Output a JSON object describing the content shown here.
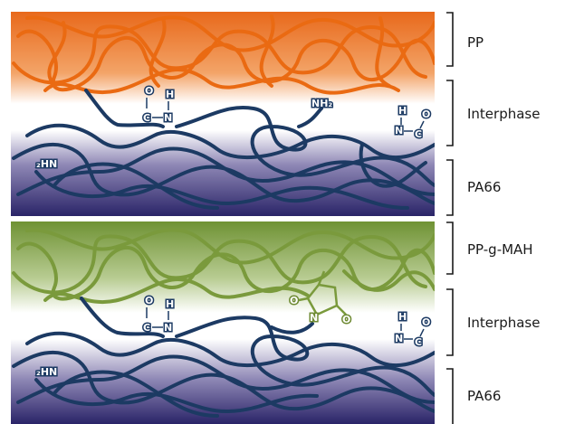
{
  "labels": {
    "pp": "PP",
    "interphase_top": "Interphase",
    "pa66_top": "PA66",
    "pp_g_mah": "PP-g-MAH",
    "interphase_bottom": "Interphase",
    "pa66_bottom": "PA66"
  },
  "chem": {
    "top_c": "C",
    "top_o": "O",
    "top_n": "N",
    "top_h": "H",
    "top_nh2": "NH₂",
    "top_right_n": "N",
    "top_right_h": "H",
    "top_right_c": "C",
    "top_right_o": "O",
    "top_2hn": "₂HN",
    "bottom_c": "C",
    "bottom_o": "O",
    "bottom_n": "N",
    "bottom_h": "H",
    "bottom_mah_n": "N",
    "bottom_mah_o1": "O",
    "bottom_mah_o2": "O",
    "bottom_right_n": "N",
    "bottom_right_h": "H",
    "bottom_right_c": "C",
    "bottom_right_o": "O",
    "bottom_2hn": "₂HN"
  },
  "colors": {
    "pp_orange": "#e8691b",
    "pp_g_mah_green": "#6f9234",
    "pa66_navy": "#2a2468",
    "chain_blue": "#1c3a63",
    "chain_orange": "#ea6a12",
    "chain_green": "#7a9a3c"
  }
}
